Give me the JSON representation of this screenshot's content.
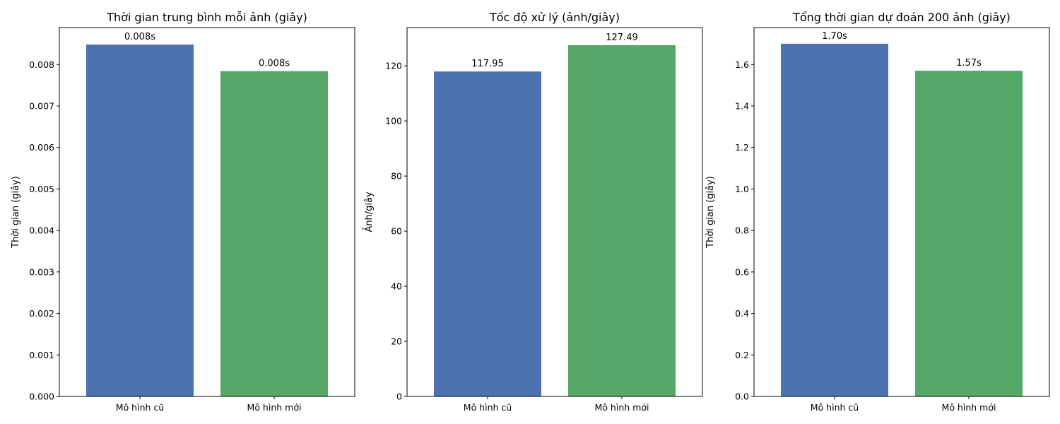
{
  "chart_data": [
    {
      "type": "bar",
      "title": "Thời gian trung bình mỗi ảnh (giây)",
      "xlabel": "",
      "ylabel": "Thời gian (giây)",
      "categories": [
        "Mô hình cũ",
        "Mô hình mới"
      ],
      "values": [
        0.00848,
        0.00784
      ],
      "data_labels": [
        "0.008s",
        "0.008s"
      ],
      "colors": [
        "#4c72b0",
        "#55a868"
      ],
      "ylim": [
        0,
        0.00889
      ],
      "yticks": [
        0,
        0.001,
        0.002,
        0.003,
        0.004,
        0.005,
        0.006,
        0.007,
        0.008
      ],
      "ytick_labels": [
        "0.000",
        "0.001",
        "0.002",
        "0.003",
        "0.004",
        "0.005",
        "0.006",
        "0.007",
        "0.008"
      ],
      "grid": false,
      "legend": "none"
    },
    {
      "type": "bar",
      "title": "Tốc độ xử lý (ảnh/giây)",
      "xlabel": "",
      "ylabel": "Ảnh/giây",
      "categories": [
        "Mô hình cũ",
        "Mô hình mới"
      ],
      "values": [
        117.95,
        127.49
      ],
      "data_labels": [
        "117.95",
        "127.49"
      ],
      "colors": [
        "#4c72b0",
        "#55a868"
      ],
      "ylim": [
        0,
        133.9
      ],
      "yticks": [
        0,
        20,
        40,
        60,
        80,
        100,
        120
      ],
      "ytick_labels": [
        "0",
        "20",
        "40",
        "60",
        "80",
        "100",
        "120"
      ],
      "grid": false,
      "legend": "none"
    },
    {
      "type": "bar",
      "title": "Tổng thời gian dự đoán 200 ảnh (giây)",
      "xlabel": "",
      "ylabel": "Thời gian (giây)",
      "categories": [
        "Mô hình cũ",
        "Mô hình mới"
      ],
      "values": [
        1.7,
        1.57
      ],
      "data_labels": [
        "1.70s",
        "1.57s"
      ],
      "colors": [
        "#4c72b0",
        "#55a868"
      ],
      "ylim": [
        0,
        1.778
      ],
      "yticks": [
        0,
        0.2,
        0.4,
        0.6,
        0.8,
        1.0,
        1.2,
        1.4,
        1.6
      ],
      "ytick_labels": [
        "0.0",
        "0.2",
        "0.4",
        "0.6",
        "0.8",
        "1.0",
        "1.2",
        "1.4",
        "1.6"
      ],
      "grid": false,
      "legend": "none"
    }
  ]
}
